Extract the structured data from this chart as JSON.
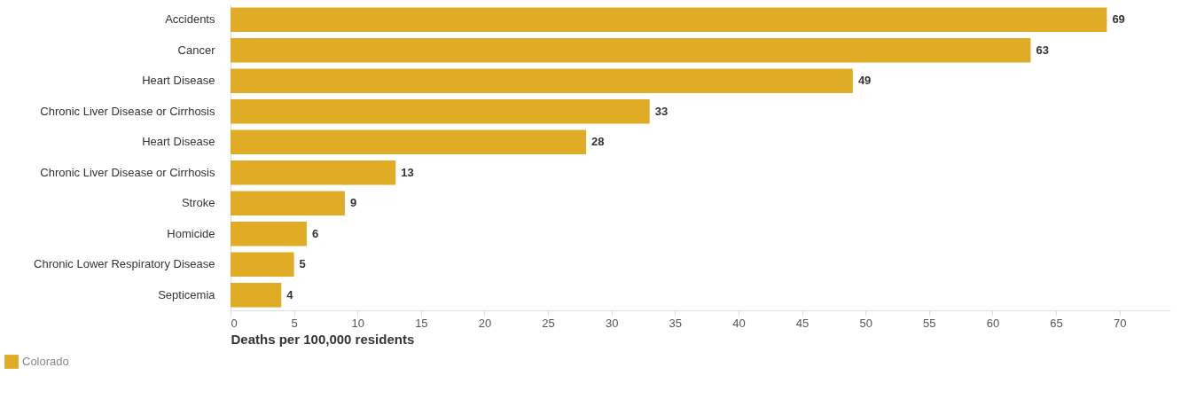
{
  "chart_data": {
    "type": "bar",
    "orientation": "horizontal",
    "categories": [
      "Accidents",
      "Cancer",
      "Heart Disease",
      "Chronic Liver Disease or Cirrhosis",
      "Heart Disease",
      "Chronic Liver Disease or Cirrhosis",
      "Stroke",
      "Homicide",
      "Chronic Lower Respiratory Disease",
      "Septicemia"
    ],
    "series": [
      {
        "name": "Colorado",
        "color": "#e0ac25",
        "values": [
          69,
          63,
          49,
          33,
          28,
          13,
          9,
          6,
          5,
          4
        ]
      }
    ],
    "xlabel": "Deaths per 100,000 residents",
    "xlim": [
      0,
      74
    ],
    "xticks": [
      0,
      5,
      10,
      15,
      20,
      25,
      30,
      35,
      40,
      45,
      50,
      55,
      60,
      65,
      70
    ],
    "data_labels": true,
    "grid": false,
    "legend": "bottom left"
  }
}
